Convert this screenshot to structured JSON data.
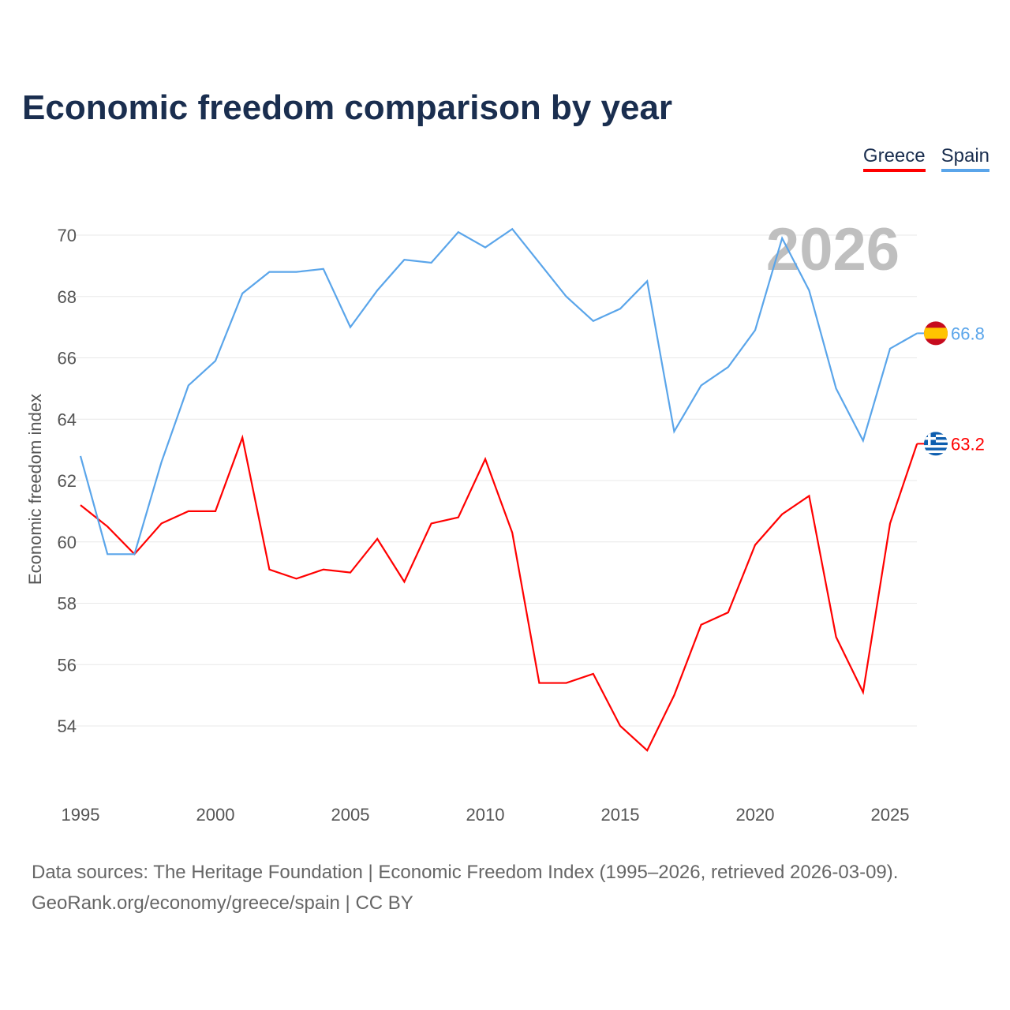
{
  "title": "Economic freedom comparison by year",
  "footer": {
    "line1": "Data sources: The Heritage Foundation | Economic Freedom Index (1995–2026, retrieved 2026-03-09).",
    "line2": "GeoRank.org/economy/greece/spain | CC BY"
  },
  "chart_data": {
    "type": "line",
    "title": "Economic freedom comparison by year",
    "xlabel": "",
    "ylabel": "Economic freedom index",
    "year_label": "2026",
    "xlim": [
      1995,
      2026
    ],
    "ylim": [
      52.3,
      72
    ],
    "xticks": [
      1995,
      2000,
      2005,
      2010,
      2015,
      2020,
      2025
    ],
    "yticks": [
      54,
      56,
      58,
      60,
      62,
      64,
      66,
      68,
      70
    ],
    "grid": true,
    "legend": "top-right",
    "x": [
      1995,
      1996,
      1997,
      1998,
      1999,
      2000,
      2001,
      2002,
      2003,
      2004,
      2005,
      2006,
      2007,
      2008,
      2009,
      2010,
      2011,
      2012,
      2013,
      2014,
      2015,
      2016,
      2017,
      2018,
      2019,
      2020,
      2021,
      2022,
      2023,
      2024,
      2025,
      2026
    ],
    "series": [
      {
        "name": "Greece",
        "color": "#ff0000",
        "end_label": "63.2",
        "flag": "greece-flag",
        "values": [
          61.2,
          60.5,
          59.6,
          60.6,
          61.0,
          61.0,
          63.4,
          59.1,
          58.8,
          59.1,
          59.0,
          60.1,
          58.7,
          60.6,
          60.8,
          62.7,
          60.3,
          55.4,
          55.4,
          55.7,
          54.0,
          53.2,
          55.0,
          57.3,
          57.7,
          59.9,
          60.9,
          61.5,
          56.9,
          55.1,
          60.6,
          63.2
        ]
      },
      {
        "name": "Spain",
        "color": "#5aa5ea",
        "end_label": "66.8",
        "flag": "spain-flag",
        "values": [
          62.8,
          59.6,
          59.6,
          62.6,
          65.1,
          65.9,
          68.1,
          68.8,
          68.8,
          68.9,
          67.0,
          68.2,
          69.2,
          69.1,
          70.1,
          69.6,
          70.2,
          69.1,
          68.0,
          67.2,
          67.6,
          68.5,
          63.6,
          65.1,
          65.7,
          66.9,
          69.9,
          68.2,
          65.0,
          63.3,
          66.3,
          66.8
        ]
      }
    ]
  }
}
